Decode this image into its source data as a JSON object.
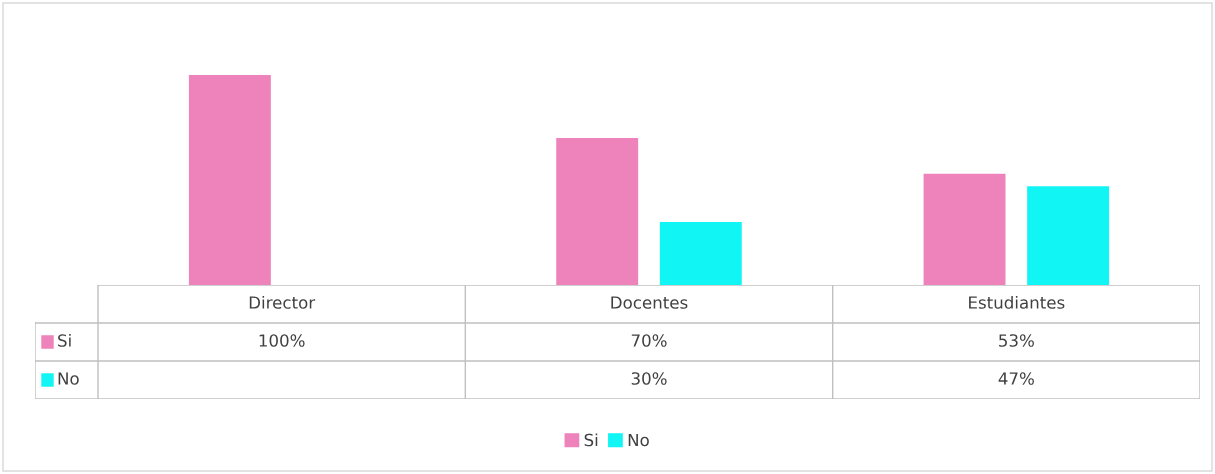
{
  "chart_data": {
    "type": "bar",
    "categories": [
      "Director",
      "Docentes",
      "Estudiantes"
    ],
    "series": [
      {
        "name": "Si",
        "color": "#ee82bb",
        "values": [
          100,
          70,
          53
        ],
        "value_labels": [
          "100%",
          "70%",
          "53%"
        ]
      },
      {
        "name": "No",
        "color": "#12f5f5",
        "values": [
          null,
          30,
          47
        ],
        "value_labels": [
          null,
          "30%",
          "47%"
        ]
      }
    ],
    "tick_labels": false,
    "legend": "bottom"
  }
}
